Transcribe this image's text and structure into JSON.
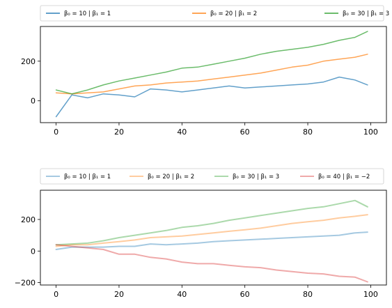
{
  "chart_data": [
    {
      "type": "line",
      "title": "",
      "xlabel": "",
      "ylabel": "",
      "xlim": [
        -5,
        105
      ],
      "ylim": [
        -110,
        375
      ],
      "xticks": [
        0,
        20,
        40,
        60,
        80,
        100
      ],
      "yticks": [
        0,
        200
      ],
      "grid": false,
      "legend": "top, outside axes, 3 columns",
      "series": [
        {
          "name": "β₀ = 10 | β₁ = 1",
          "color": "#1f77b4",
          "opacity": 0.7,
          "x": [
            0,
            5,
            10,
            15,
            20,
            25,
            30,
            35,
            40,
            45,
            50,
            55,
            60,
            65,
            70,
            75,
            80,
            85,
            90,
            95,
            99
          ],
          "values": [
            -80,
            30,
            15,
            35,
            30,
            20,
            60,
            55,
            45,
            55,
            65,
            75,
            65,
            70,
            75,
            80,
            85,
            95,
            120,
            105,
            80
          ]
        },
        {
          "name": "β₀ = 20 | β₁ = 2",
          "color": "#ff7f0e",
          "opacity": 0.7,
          "x": [
            0,
            5,
            10,
            15,
            20,
            25,
            30,
            35,
            40,
            45,
            50,
            55,
            60,
            65,
            70,
            75,
            80,
            85,
            90,
            95,
            99
          ],
          "values": [
            40,
            35,
            40,
            45,
            60,
            75,
            80,
            90,
            95,
            100,
            110,
            120,
            130,
            140,
            155,
            170,
            180,
            200,
            210,
            220,
            235
          ]
        },
        {
          "name": "β₀ = 30 | β₁ = 3",
          "color": "#2ca02c",
          "opacity": 0.7,
          "x": [
            0,
            5,
            10,
            15,
            20,
            25,
            30,
            35,
            40,
            45,
            50,
            55,
            60,
            65,
            70,
            75,
            80,
            85,
            90,
            95,
            99
          ],
          "values": [
            55,
            35,
            55,
            80,
            100,
            115,
            130,
            145,
            165,
            170,
            185,
            200,
            215,
            235,
            250,
            260,
            270,
            285,
            305,
            320,
            350
          ]
        }
      ]
    },
    {
      "type": "line",
      "title": "",
      "xlabel": "",
      "ylabel": "",
      "xlim": [
        -5,
        105
      ],
      "ylim": [
        -215,
        385
      ],
      "xticks": [
        0,
        20,
        40,
        60,
        80,
        100
      ],
      "yticks": [
        -200,
        0,
        200
      ],
      "grid": false,
      "legend": "top, outside axes, 4 columns",
      "series": [
        {
          "name": "β₀ = 10 | β₁ = 1",
          "color": "#1f77b4",
          "opacity": 0.4,
          "x": [
            0,
            5,
            10,
            15,
            20,
            25,
            30,
            35,
            40,
            45,
            50,
            55,
            60,
            65,
            70,
            75,
            80,
            85,
            90,
            95,
            99
          ],
          "values": [
            10,
            25,
            25,
            25,
            30,
            30,
            45,
            40,
            45,
            50,
            60,
            65,
            70,
            75,
            80,
            85,
            90,
            95,
            100,
            115,
            120
          ]
        },
        {
          "name": "β₀ = 20 | β₁ = 2",
          "color": "#ff7f0e",
          "opacity": 0.4,
          "x": [
            0,
            5,
            10,
            15,
            20,
            25,
            30,
            35,
            40,
            45,
            50,
            55,
            60,
            65,
            70,
            75,
            80,
            85,
            90,
            95,
            99
          ],
          "values": [
            30,
            40,
            40,
            50,
            60,
            70,
            85,
            90,
            95,
            105,
            115,
            125,
            135,
            145,
            160,
            175,
            185,
            195,
            210,
            220,
            230
          ]
        },
        {
          "name": "β₀ = 30 | β₁ = 3",
          "color": "#2ca02c",
          "opacity": 0.4,
          "x": [
            0,
            5,
            10,
            15,
            20,
            25,
            30,
            35,
            40,
            45,
            50,
            55,
            60,
            65,
            70,
            75,
            80,
            85,
            90,
            95,
            99
          ],
          "values": [
            40,
            45,
            50,
            65,
            85,
            100,
            115,
            130,
            150,
            160,
            175,
            195,
            210,
            225,
            240,
            255,
            270,
            280,
            300,
            320,
            280
          ]
        },
        {
          "name": "β₀ = 40 | β₁ = −2",
          "color": "#d62728",
          "opacity": 0.4,
          "x": [
            0,
            5,
            10,
            15,
            20,
            25,
            30,
            35,
            40,
            45,
            50,
            55,
            60,
            65,
            70,
            75,
            80,
            85,
            90,
            95,
            99
          ],
          "values": [
            40,
            30,
            20,
            10,
            -20,
            -20,
            -40,
            -50,
            -70,
            -80,
            -80,
            -90,
            -100,
            -105,
            -120,
            -130,
            -140,
            -145,
            -160,
            -165,
            -195
          ]
        }
      ]
    }
  ]
}
